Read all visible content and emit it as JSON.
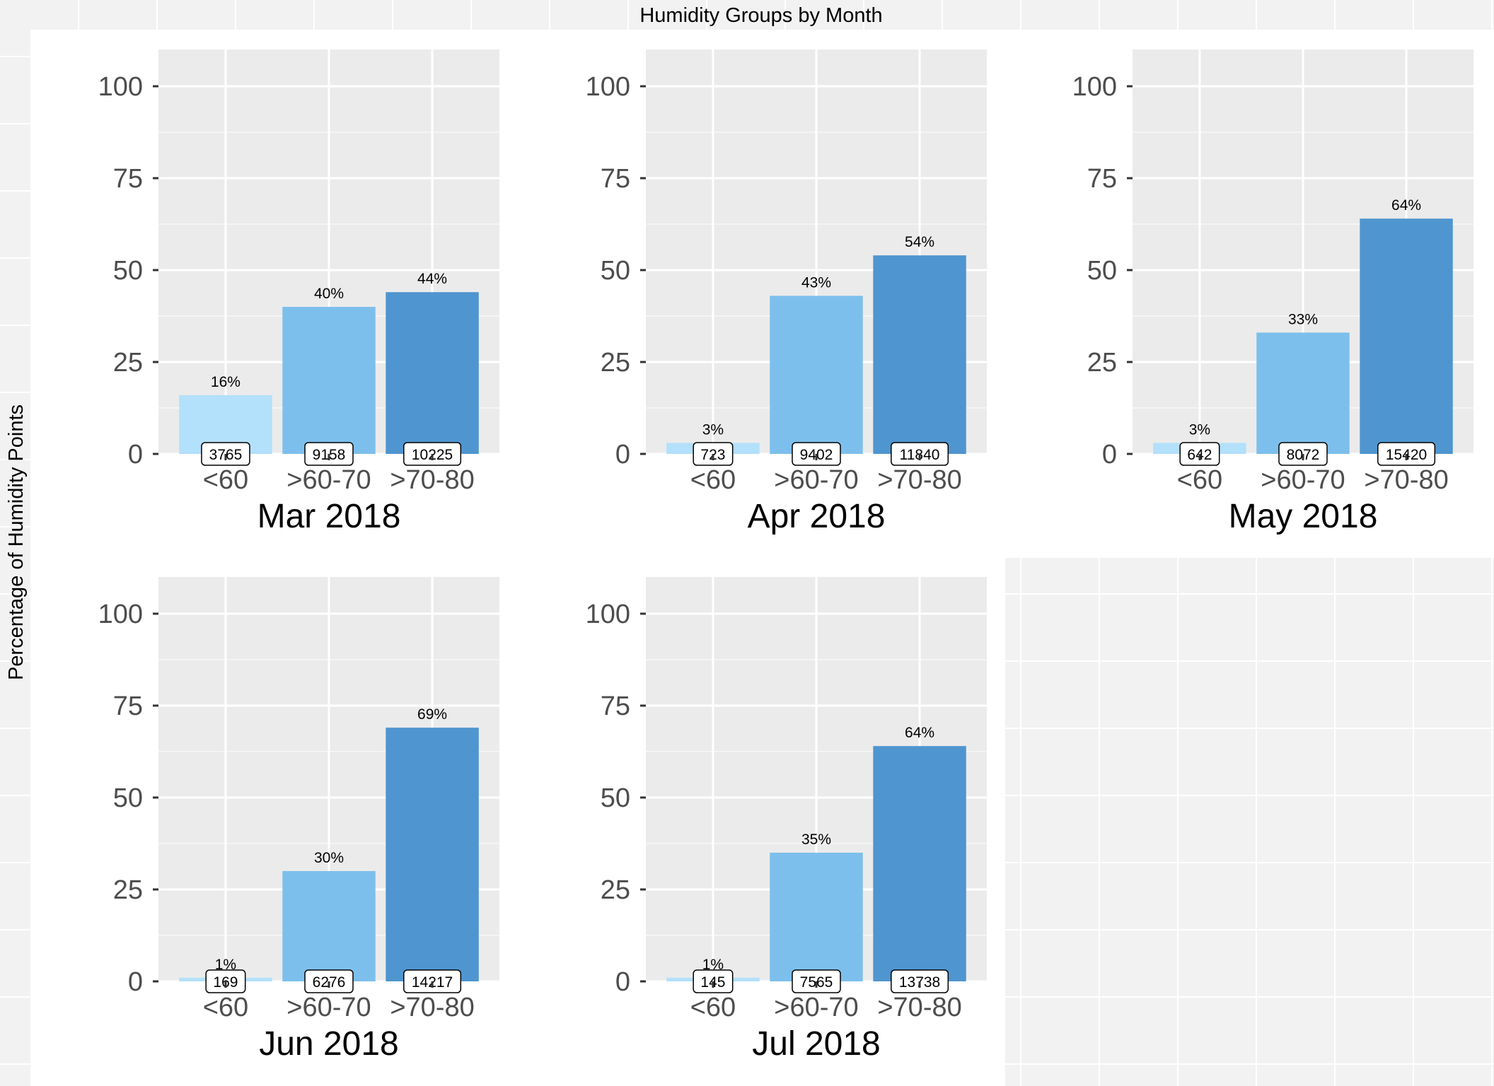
{
  "title": "Humidity Groups by Month",
  "ylabel": "Percentage of Humidity Points",
  "colors": {
    "<60": "#B3E0FB",
    ">60-70": "#7DBFEC",
    ">70-80": "#4F95CF",
    "panel_bg": "#EBEBEB",
    "outer_bg": "#F2F2F2",
    "grid": "#FFFFFF",
    "axis_text": "#4D4D4D"
  },
  "chart_data": [
    {
      "type": "bar",
      "title": "Mar 2018",
      "categories": [
        "<60",
        ">60-70",
        ">70-80"
      ],
      "values": [
        16,
        40,
        44
      ],
      "value_labels": [
        "16%",
        "40%",
        "44%"
      ],
      "counts": [
        "3765",
        "9158",
        "10225"
      ],
      "ylim": [
        0,
        110
      ],
      "yticks": [
        0,
        25,
        50,
        75,
        100
      ],
      "grid": true
    },
    {
      "type": "bar",
      "title": "Apr 2018",
      "categories": [
        "<60",
        ">60-70",
        ">70-80"
      ],
      "values": [
        3,
        43,
        54
      ],
      "value_labels": [
        "3%",
        "43%",
        "54%"
      ],
      "counts": [
        "723",
        "9402",
        "11840"
      ],
      "ylim": [
        0,
        110
      ],
      "yticks": [
        0,
        25,
        50,
        75,
        100
      ],
      "grid": true
    },
    {
      "type": "bar",
      "title": "May 2018",
      "categories": [
        "<60",
        ">60-70",
        ">70-80"
      ],
      "values": [
        3,
        33,
        64
      ],
      "value_labels": [
        "3%",
        "33%",
        "64%"
      ],
      "counts": [
        "642",
        "8072",
        "15420"
      ],
      "ylim": [
        0,
        110
      ],
      "yticks": [
        0,
        25,
        50,
        75,
        100
      ],
      "grid": true
    },
    {
      "type": "bar",
      "title": "Jun 2018",
      "categories": [
        "<60",
        ">60-70",
        ">70-80"
      ],
      "values": [
        1,
        30,
        69
      ],
      "value_labels": [
        "1%",
        "30%",
        "69%"
      ],
      "counts": [
        "169",
        "6276",
        "14217"
      ],
      "ylim": [
        0,
        110
      ],
      "yticks": [
        0,
        25,
        50,
        75,
        100
      ],
      "grid": true
    },
    {
      "type": "bar",
      "title": "Jul 2018",
      "categories": [
        "<60",
        ">60-70",
        ">70-80"
      ],
      "values": [
        1,
        35,
        64
      ],
      "value_labels": [
        "1%",
        "35%",
        "64%"
      ],
      "counts": [
        "145",
        "7565",
        "13738"
      ],
      "ylim": [
        0,
        110
      ],
      "yticks": [
        0,
        25,
        50,
        75,
        100
      ],
      "grid": true
    }
  ]
}
